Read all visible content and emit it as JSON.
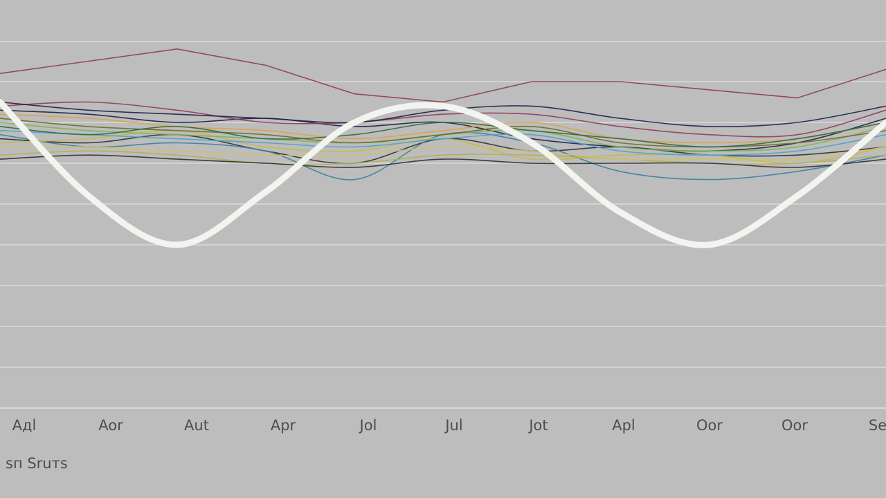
{
  "chart_data": {
    "type": "line",
    "caption": "sп Sruтs",
    "categories": [
      "Aдl",
      "Aor",
      "Aut",
      "Apr",
      "Jol",
      "Jul",
      "Jot",
      "Apl",
      "Oor",
      "Oor",
      "Se"
    ],
    "grid": true,
    "legend": "none",
    "ylim": [
      0,
      100
    ],
    "colors": {
      "background": "#bdbdbd",
      "grid": "#d9d9d9",
      "highlight": "#f3f3ef",
      "series": [
        "#8e3b55",
        "#1f1f4a",
        "#2f2f2f",
        "#3a7f9f",
        "#c9b84a",
        "#7fb34f",
        "#e0a040",
        "#4aa3c8",
        "#6a6a2a",
        "#b0b050",
        "#2b6d3a",
        "#d4c060"
      ]
    },
    "series": [
      {
        "values": [
          82,
          85,
          88,
          84,
          77,
          75,
          80,
          80,
          78,
          76,
          83
        ]
      },
      {
        "values": [
          73,
          72,
          70,
          71,
          69,
          70,
          66,
          64,
          63,
          65,
          71
        ]
      },
      {
        "values": [
          66,
          65,
          67,
          63,
          60,
          66,
          63,
          64,
          62,
          62,
          64
        ]
      },
      {
        "values": [
          67,
          64,
          65,
          63,
          56,
          67,
          65,
          58,
          56,
          58,
          62
        ]
      },
      {
        "values": [
          65,
          66,
          68,
          64,
          63,
          66,
          61,
          62,
          62,
          60,
          64
        ]
      },
      {
        "values": [
          70,
          68,
          67,
          66,
          65,
          67,
          68,
          64,
          63,
          64,
          69
        ]
      },
      {
        "values": [
          72,
          71,
          69,
          68,
          66,
          68,
          70,
          66,
          65,
          66,
          70
        ]
      },
      {
        "values": [
          68,
          67,
          66,
          65,
          64,
          66,
          67,
          63,
          62,
          63,
          67
        ]
      },
      {
        "values": [
          71,
          69,
          68,
          67,
          65,
          67,
          69,
          65,
          64,
          65,
          68
        ]
      },
      {
        "values": [
          62,
          63,
          62,
          60,
          60,
          62,
          62,
          61,
          60,
          60,
          62
        ]
      },
      {
        "values": [
          69,
          67,
          69,
          66,
          67,
          70,
          68,
          66,
          64,
          66,
          70
        ]
      },
      {
        "values": [
          64,
          64,
          63,
          62,
          62,
          64,
          63,
          61,
          61,
          61,
          64
        ]
      },
      {
        "values": [
          74,
          75,
          73,
          70,
          70,
          72,
          72,
          69,
          67,
          67,
          73
        ]
      },
      {
        "values": [
          75,
          73,
          72,
          71,
          70,
          73,
          74,
          71,
          69,
          70,
          74
        ]
      },
      {
        "values": [
          61,
          62,
          61,
          60,
          59,
          61,
          60,
          60,
          60,
          59,
          61
        ]
      }
    ],
    "highlight_series": {
      "values": [
        75,
        52,
        40,
        53,
        70,
        74,
        65,
        48,
        40,
        52,
        70
      ]
    }
  }
}
